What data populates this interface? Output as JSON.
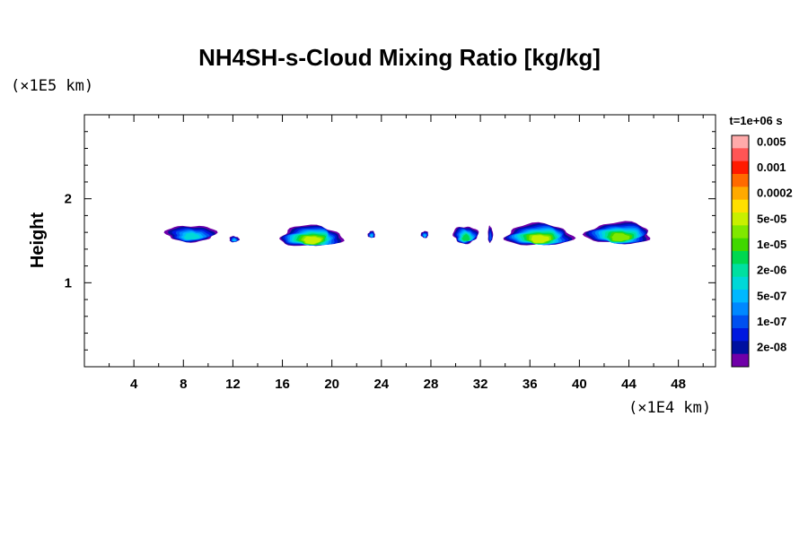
{
  "chart_data": {
    "type": "heatmap",
    "title": "NH4SH-s-Cloud Mixing Ratio [kg/kg]",
    "xlabel": "",
    "ylabel": "Height",
    "x_scale_label": "(×1E4 km)",
    "y_scale_label": "(×1E5 km)",
    "time_label": "t=1e+06 s",
    "xlim": [
      0,
      51
    ],
    "ylim": [
      0,
      3
    ],
    "x_ticks": [
      {
        "value": 4,
        "label": "4"
      },
      {
        "value": 8,
        "label": "8"
      },
      {
        "value": 12,
        "label": "12"
      },
      {
        "value": 16,
        "label": "16"
      },
      {
        "value": 20,
        "label": "20"
      },
      {
        "value": 24,
        "label": "24"
      },
      {
        "value": 28,
        "label": "28"
      },
      {
        "value": 32,
        "label": "32"
      },
      {
        "value": 36,
        "label": "36"
      },
      {
        "value": 40,
        "label": "40"
      },
      {
        "value": 44,
        "label": "44"
      },
      {
        "value": 48,
        "label": "48"
      }
    ],
    "y_ticks": [
      {
        "value": 1,
        "label": "1"
      },
      {
        "value": 2,
        "label": "2"
      }
    ],
    "colorbar": {
      "labels": [
        "0.005",
        "0.001",
        "0.0002",
        "5e-05",
        "1e-05",
        "2e-06",
        "5e-07",
        "1e-07",
        "2e-08"
      ],
      "colors": [
        "#ffaaaa",
        "#ff5555",
        "#ff1a00",
        "#ff6a00",
        "#ffaa00",
        "#ffe000",
        "#c8f000",
        "#80e800",
        "#40d800",
        "#00d850",
        "#00e0a0",
        "#00d8d8",
        "#00b8ff",
        "#0088ff",
        "#0050f0",
        "#0018e0",
        "#0010a0",
        "#7000a8"
      ]
    },
    "clouds": [
      {
        "x": [
          6.6,
          10.6
        ],
        "y": [
          1.48,
          1.67
        ],
        "max_level": 6
      },
      {
        "x": [
          11.7,
          12.5
        ],
        "y": [
          1.48,
          1.55
        ],
        "max_level": 5
      },
      {
        "x": [
          15.8,
          20.8
        ],
        "y": [
          1.42,
          1.66
        ],
        "max_level": 11
      },
      {
        "x": [
          22.9,
          23.5
        ],
        "y": [
          1.53,
          1.61
        ],
        "max_level": 5
      },
      {
        "x": [
          27.2,
          27.8
        ],
        "y": [
          1.53,
          1.61
        ],
        "max_level": 5
      },
      {
        "x": [
          29.8,
          31.8
        ],
        "y": [
          1.46,
          1.66
        ],
        "max_level": 8
      },
      {
        "x": [
          32.6,
          33.0
        ],
        "y": [
          1.47,
          1.66
        ],
        "max_level": 3
      },
      {
        "x": [
          34.0,
          39.4
        ],
        "y": [
          1.43,
          1.68
        ],
        "max_level": 11
      },
      {
        "x": [
          40.6,
          45.8
        ],
        "y": [
          1.45,
          1.7
        ],
        "max_level": 10
      }
    ]
  }
}
